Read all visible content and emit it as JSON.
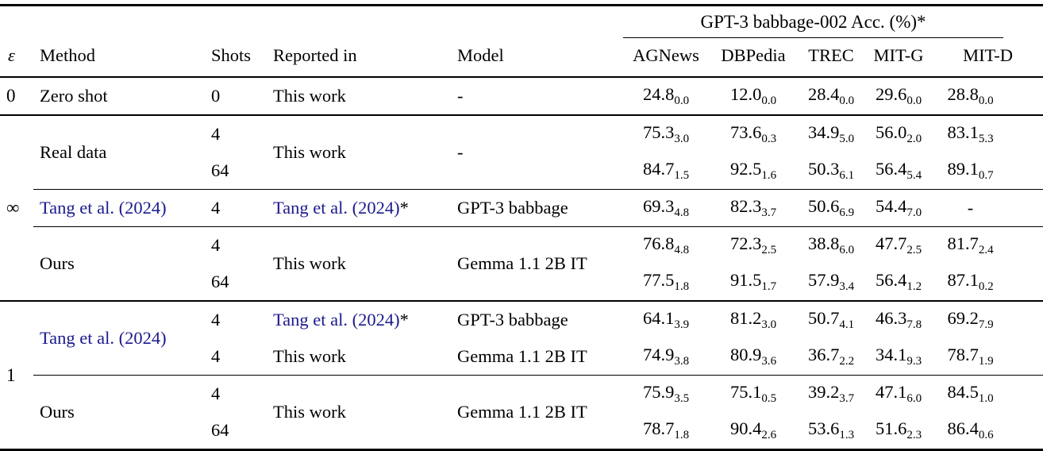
{
  "page": {
    "background": "#ffffff",
    "text_color": "#000000",
    "citation_color": "#1a1a8f"
  },
  "table": {
    "span_header": "GPT-3 babbage-002 Acc. (%)*",
    "headers": {
      "epsilon": "ε",
      "method": "Method",
      "shots": "Shots",
      "reported": "Reported in",
      "model": "Model",
      "datasets": [
        "AGNews",
        "DBPedia",
        "TREC",
        "MIT-G",
        "MIT-D"
      ]
    },
    "sections": [
      {
        "epsilon": "0",
        "blocks": [
          {
            "method": "Zero shot",
            "method_is_citation": false,
            "merged": false,
            "rows": [
              {
                "shots": "0",
                "reported": "This work",
                "reported_is_citation": false,
                "reported_star": false,
                "model": "-",
                "values": [
                  [
                    "24.8",
                    "0.0"
                  ],
                  [
                    "12.0",
                    "0.0"
                  ],
                  [
                    "28.4",
                    "0.0"
                  ],
                  [
                    "29.6",
                    "0.0"
                  ],
                  [
                    "28.8",
                    "0.0"
                  ]
                ]
              }
            ]
          }
        ]
      },
      {
        "epsilon": "∞",
        "blocks": [
          {
            "method": "Real data",
            "method_is_citation": false,
            "merged": true,
            "reported": "This work",
            "reported_is_citation": false,
            "reported_star": false,
            "model": "-",
            "rows": [
              {
                "shots": "4",
                "values": [
                  [
                    "75.3",
                    "3.0"
                  ],
                  [
                    "73.6",
                    "0.3"
                  ],
                  [
                    "34.9",
                    "5.0"
                  ],
                  [
                    "56.0",
                    "2.0"
                  ],
                  [
                    "83.1",
                    "5.3"
                  ]
                ]
              },
              {
                "shots": "64",
                "values": [
                  [
                    "84.7",
                    "1.5"
                  ],
                  [
                    "92.5",
                    "1.6"
                  ],
                  [
                    "50.3",
                    "6.1"
                  ],
                  [
                    "56.4",
                    "5.4"
                  ],
                  [
                    "89.1",
                    "0.7"
                  ]
                ]
              }
            ]
          },
          {
            "method": "Tang et al. (2024)",
            "method_is_citation": true,
            "merged": false,
            "rows": [
              {
                "shots": "4",
                "reported": "Tang et al. (2024)",
                "reported_is_citation": true,
                "reported_star": true,
                "model": "GPT-3 babbage",
                "values": [
                  [
                    "69.3",
                    "4.8"
                  ],
                  [
                    "82.3",
                    "3.7"
                  ],
                  [
                    "50.6",
                    "6.9"
                  ],
                  [
                    "54.4",
                    "7.0"
                  ],
                  "-"
                ]
              }
            ]
          },
          {
            "method": "Ours",
            "method_is_citation": false,
            "merged": true,
            "reported": "This work",
            "reported_is_citation": false,
            "reported_star": false,
            "model": "Gemma 1.1 2B IT",
            "rows": [
              {
                "shots": "4",
                "values": [
                  [
                    "76.8",
                    "4.8"
                  ],
                  [
                    "72.3",
                    "2.5"
                  ],
                  [
                    "38.8",
                    "6.0"
                  ],
                  [
                    "47.7",
                    "2.5"
                  ],
                  [
                    "81.7",
                    "2.4"
                  ]
                ]
              },
              {
                "shots": "64",
                "values": [
                  [
                    "77.5",
                    "1.8"
                  ],
                  [
                    "91.5",
                    "1.7"
                  ],
                  [
                    "57.9",
                    "3.4"
                  ],
                  [
                    "56.4",
                    "1.2"
                  ],
                  [
                    "87.1",
                    "0.2"
                  ]
                ]
              }
            ]
          }
        ]
      },
      {
        "epsilon": "1",
        "blocks": [
          {
            "method": "Tang et al. (2024)",
            "method_is_citation": true,
            "merged": false,
            "rows": [
              {
                "shots": "4",
                "reported": "Tang et al. (2024)",
                "reported_is_citation": true,
                "reported_star": true,
                "model": "GPT-3 babbage",
                "values": [
                  [
                    "64.1",
                    "3.9"
                  ],
                  [
                    "81.2",
                    "3.0"
                  ],
                  [
                    "50.7",
                    "4.1"
                  ],
                  [
                    "46.3",
                    "7.8"
                  ],
                  [
                    "69.2",
                    "7.9"
                  ]
                ]
              },
              {
                "shots": "4",
                "reported": "This work",
                "reported_is_citation": false,
                "reported_star": false,
                "model": "Gemma 1.1 2B IT",
                "values": [
                  [
                    "74.9",
                    "3.8"
                  ],
                  [
                    "80.9",
                    "3.6"
                  ],
                  [
                    "36.7",
                    "2.2"
                  ],
                  [
                    "34.1",
                    "9.3"
                  ],
                  [
                    "78.7",
                    "1.9"
                  ]
                ]
              }
            ]
          },
          {
            "method": "Ours",
            "method_is_citation": false,
            "merged": true,
            "reported": "This work",
            "reported_is_citation": false,
            "reported_star": false,
            "model": "Gemma 1.1 2B IT",
            "rows": [
              {
                "shots": "4",
                "values": [
                  [
                    "75.9",
                    "3.5"
                  ],
                  [
                    "75.1",
                    "0.5"
                  ],
                  [
                    "39.2",
                    "3.7"
                  ],
                  [
                    "47.1",
                    "6.0"
                  ],
                  [
                    "84.5",
                    "1.0"
                  ]
                ]
              },
              {
                "shots": "64",
                "values": [
                  [
                    "78.7",
                    "1.8"
                  ],
                  [
                    "90.4",
                    "2.6"
                  ],
                  [
                    "53.6",
                    "1.3"
                  ],
                  [
                    "51.6",
                    "2.3"
                  ],
                  [
                    "86.4",
                    "0.6"
                  ]
                ]
              }
            ]
          }
        ]
      }
    ]
  }
}
